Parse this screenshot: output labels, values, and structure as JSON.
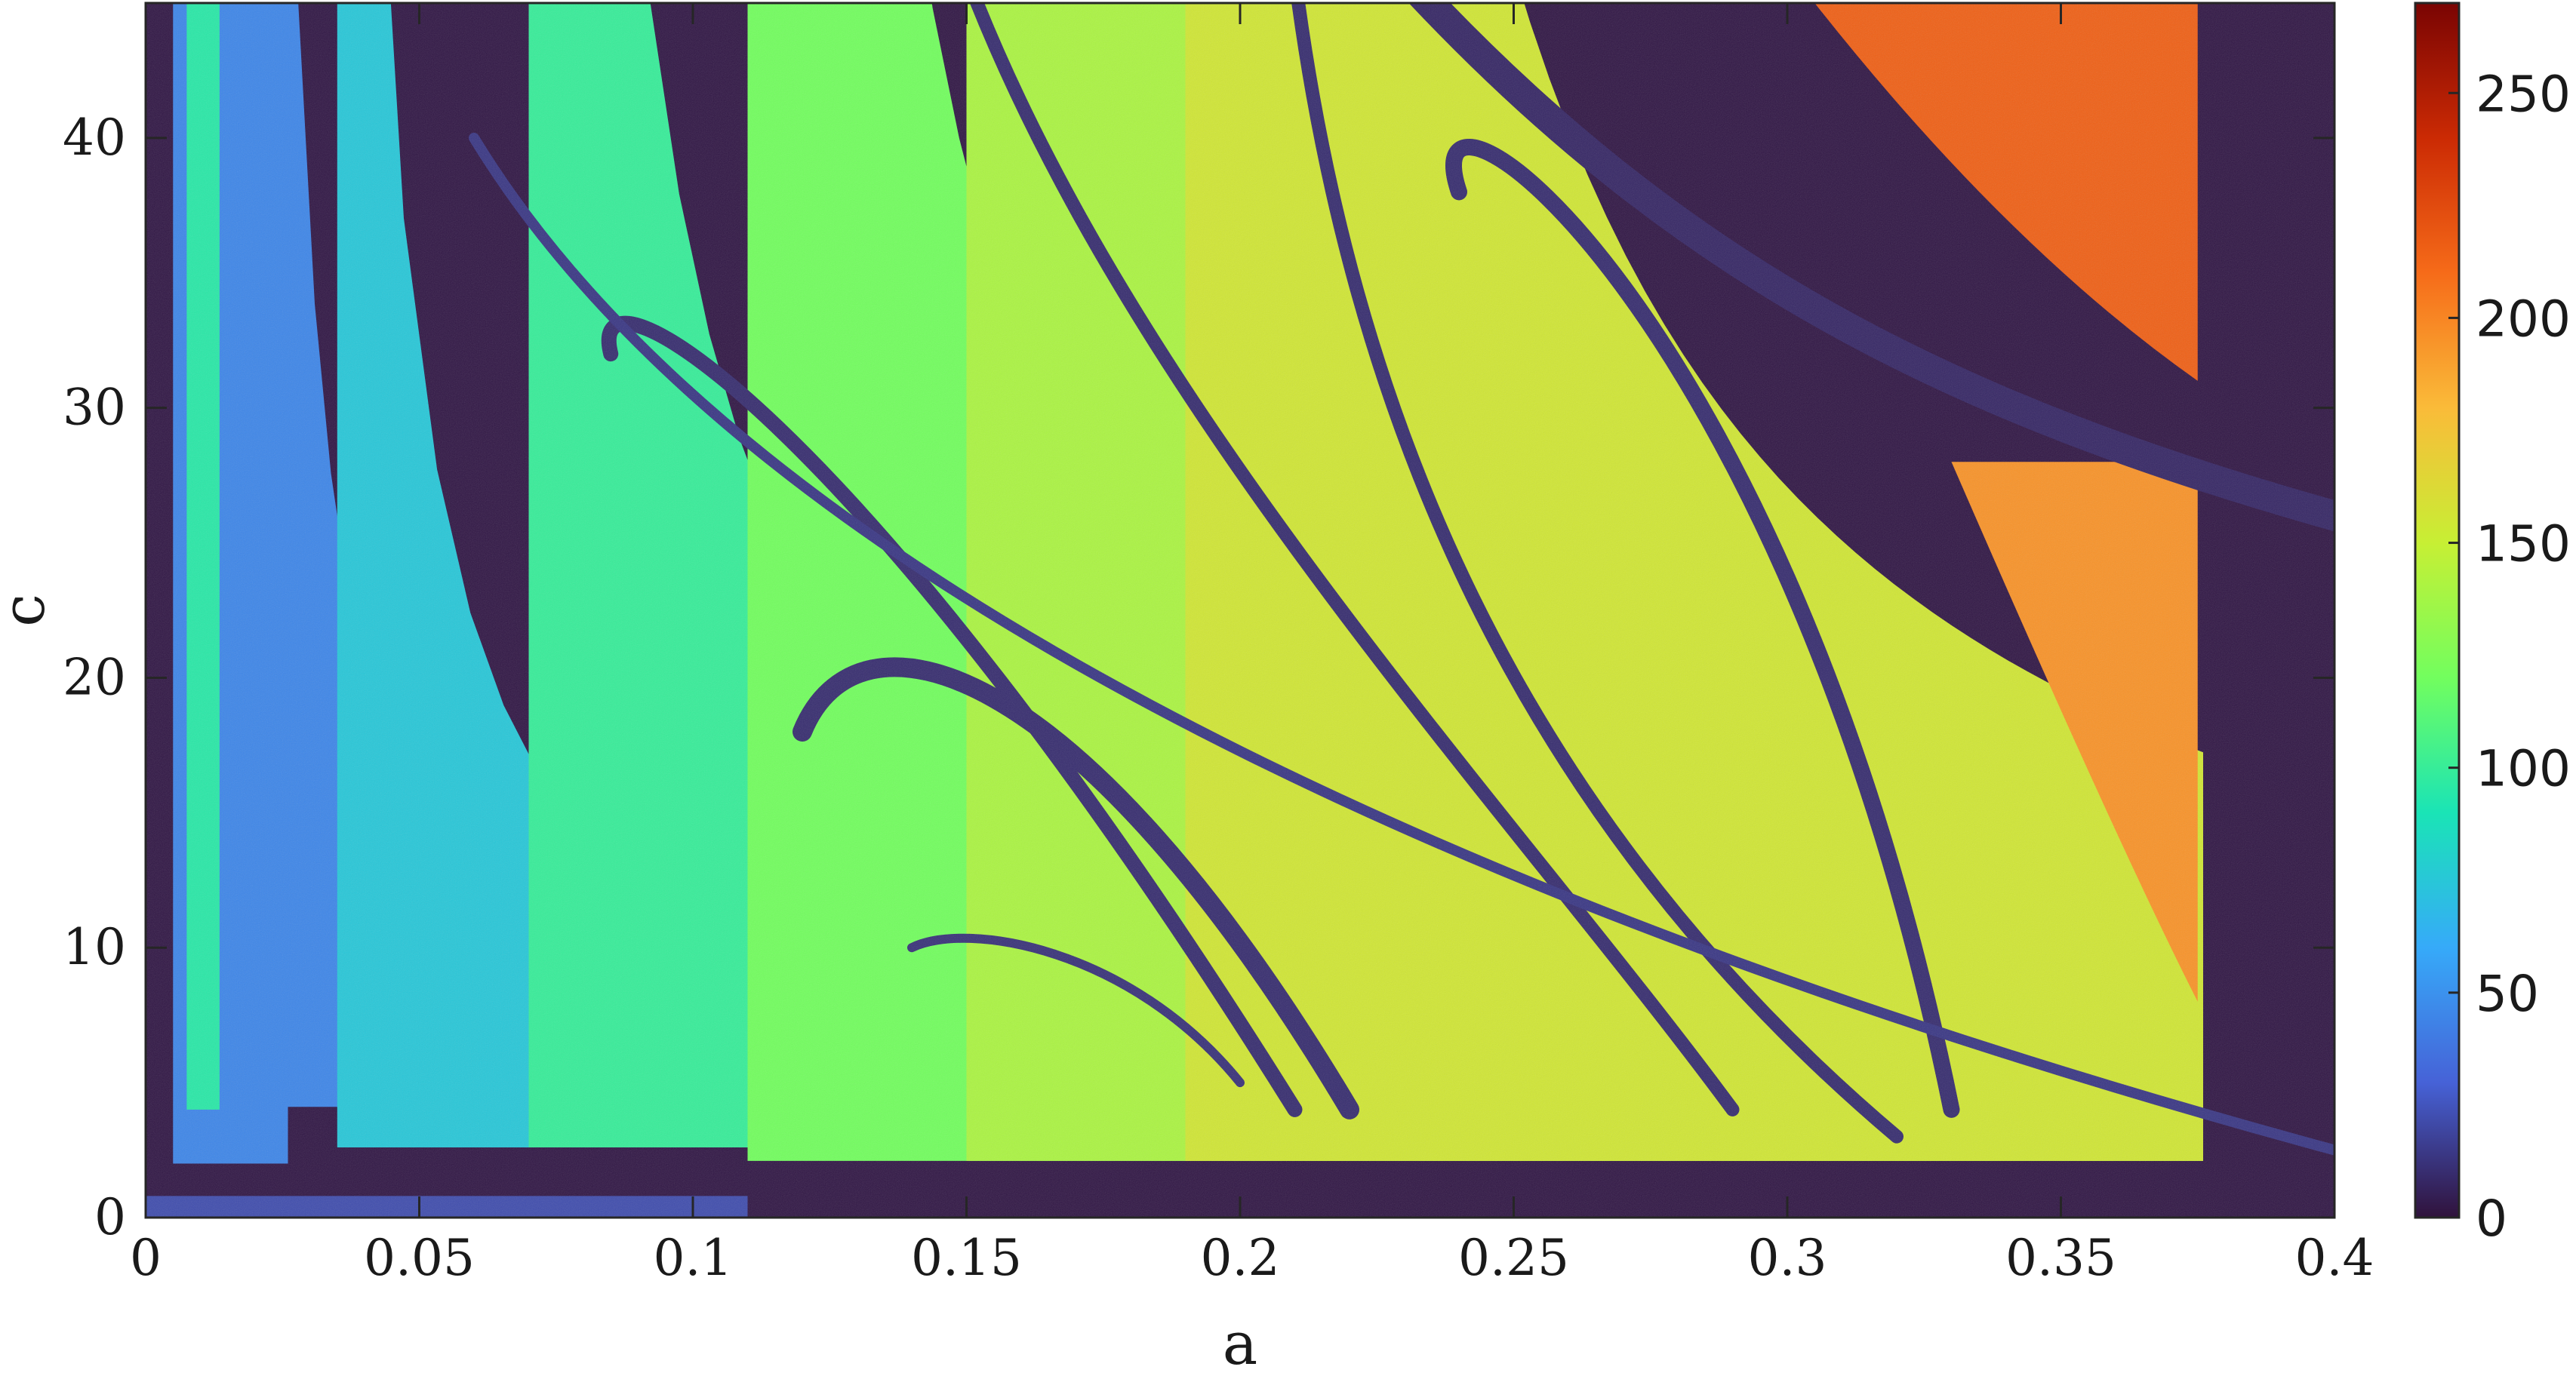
{
  "chart_data": {
    "type": "heatmap",
    "title": "",
    "xlabel": "a",
    "ylabel": "c",
    "xlim": [
      0,
      0.4
    ],
    "ylim": [
      0,
      45
    ],
    "x_ticks": [
      "0",
      "0.05",
      "0.1",
      "0.15",
      "0.2",
      "0.25",
      "0.3",
      "0.35",
      "0.4"
    ],
    "x_tick_values": [
      0,
      0.05,
      0.1,
      0.15,
      0.2,
      0.25,
      0.3,
      0.35,
      0.4
    ],
    "y_ticks": [
      "0",
      "10",
      "20",
      "30",
      "40"
    ],
    "y_tick_values": [
      0,
      10,
      20,
      30,
      40
    ],
    "colorbar": {
      "range": [
        0,
        270
      ],
      "ticks": [
        "0",
        "50",
        "100",
        "150",
        "200",
        "250"
      ],
      "tick_values": [
        0,
        50,
        100,
        150,
        200,
        250
      ],
      "colormap": "turbo",
      "colors": [
        "#30123b",
        "#4662d7",
        "#36aaf9",
        "#1ae4b6",
        "#72fe5e",
        "#c7ef34",
        "#fabb39",
        "#f66b19",
        "#cb2a04",
        "#7a0403"
      ]
    },
    "regions_note": null,
    "grid": false
  }
}
